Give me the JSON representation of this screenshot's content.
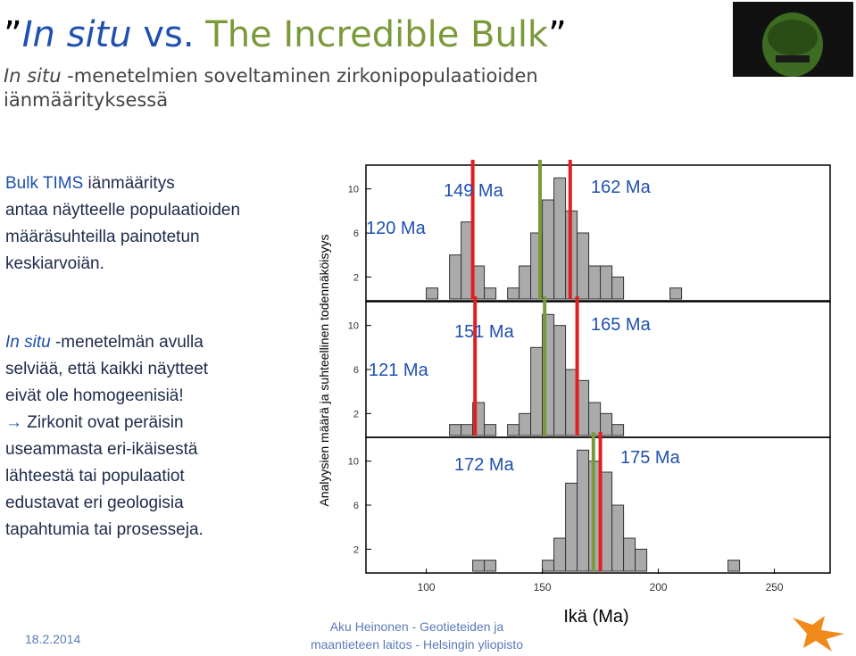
{
  "header": {
    "quote_open": "”",
    "title_insitu": "In situ",
    "title_vs": "vs.",
    "title_bulk": "The Incredible Bulk",
    "quote_close": "”",
    "subtitle_italic": "In situ",
    "subtitle_line1": " -menetelmien soveltaminen zirkonipopulaatioiden",
    "subtitle_line2": "iänmäärityksessä"
  },
  "body": {
    "p1_blue": "Bulk TIMS",
    "p1_lines": [
      " iänmääritys",
      "antaa näytteelle populaatioiden",
      "määräsuhteilla painotetun",
      "keskiarvoiän."
    ],
    "p2_blue": "In situ",
    "p2_lines": [
      " -menetelmän avulla",
      "selviää, että kaikki näytteet",
      "eivät ole homogeenisiä!"
    ],
    "p3_arrow": "→",
    "p3_lines": [
      " Zirkonit ovat peräisin",
      "useammasta eri-ikäisestä",
      "lähteestä tai populaatiot",
      "edustavat eri geologisia",
      "tapahtumia tai prosesseja."
    ]
  },
  "figure": {
    "y_label": "Analyysien määrä ja suhteellinen todennäköisyys",
    "x_label": "Ikä (Ma)",
    "xlim": [
      74,
      274
    ],
    "xticks": [
      100,
      150,
      200,
      250
    ],
    "bins": [
      95,
      100,
      105,
      110,
      115,
      120,
      125,
      130,
      135,
      140,
      145,
      150,
      155,
      160,
      165,
      170,
      175,
      180,
      185,
      190,
      195,
      200,
      205,
      210,
      215,
      220,
      225,
      230,
      235,
      240
    ],
    "panels": [
      {
        "ylim": [
          0,
          12
        ],
        "yticks": [
          2,
          6,
          10
        ],
        "counts": [
          0,
          1,
          0,
          4,
          7,
          3,
          1,
          0,
          1,
          3,
          6,
          9,
          11,
          8,
          6,
          3,
          3,
          2,
          0,
          0,
          0,
          0,
          1,
          0,
          0,
          0,
          0,
          0,
          0
        ],
        "ages": [
          {
            "value": 120,
            "label": "120 Ma",
            "color": "#e02020"
          },
          {
            "value": 149,
            "label": "149 Ma",
            "color": "#7a9a3a"
          },
          {
            "value": 162,
            "label": "162 Ma",
            "color": "#e02020"
          }
        ]
      },
      {
        "ylim": [
          0,
          12
        ],
        "yticks": [
          2,
          6,
          10
        ],
        "counts": [
          0,
          0,
          0,
          1,
          1,
          3,
          1,
          0,
          1,
          2,
          8,
          11,
          10,
          6,
          5,
          3,
          2,
          1,
          0,
          0,
          0,
          0,
          0,
          0,
          0,
          0,
          0,
          0,
          0
        ],
        "ages": [
          {
            "value": 121,
            "label": "121 Ma",
            "color": "#e02020"
          },
          {
            "value": 151,
            "label": "151 Ma",
            "color": "#7a9a3a"
          },
          {
            "value": 165,
            "label": "165 Ma",
            "color": "#e02020"
          }
        ]
      },
      {
        "ylim": [
          0,
          12
        ],
        "yticks": [
          2,
          6,
          10
        ],
        "counts": [
          0,
          0,
          0,
          0,
          0,
          1,
          1,
          0,
          0,
          0,
          0,
          1,
          3,
          8,
          11,
          10,
          9,
          6,
          3,
          2,
          0,
          0,
          0,
          0,
          0,
          0,
          0,
          1,
          0
        ],
        "ages": [
          {
            "value": 172,
            "label": "172 Ma",
            "color": "#7a9a3a"
          },
          {
            "value": 175,
            "label": "175 Ma",
            "color": "#e02020"
          }
        ]
      }
    ]
  },
  "footer": {
    "date": "18.2.2014",
    "author_line1": "Aku Heinonen - Geotieteiden ja",
    "author_line2": "maantieteen laitos - Helsingin yliopisto"
  }
}
